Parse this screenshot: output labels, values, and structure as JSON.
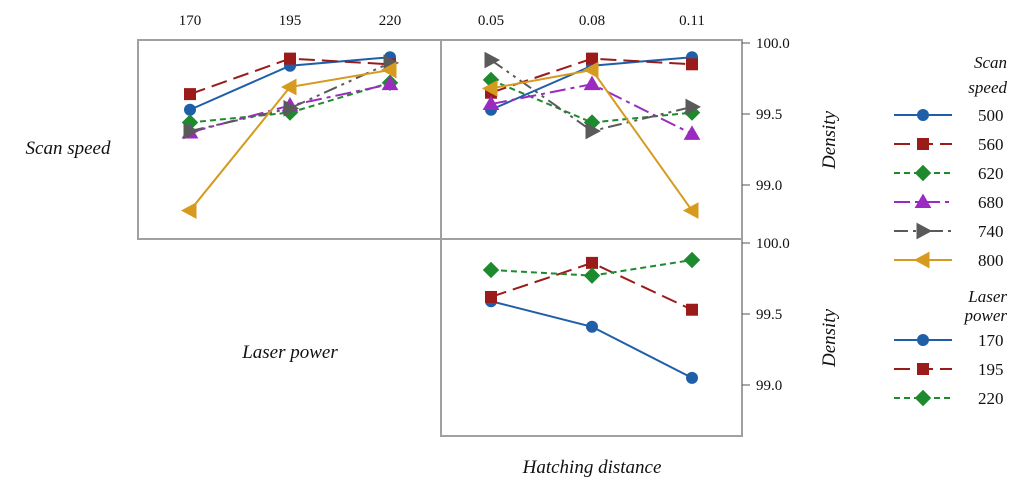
{
  "chart_data": {
    "type": "line",
    "title": "",
    "row_labels": [
      "Scan speed",
      "Laser power"
    ],
    "xlabel": "Hatching distance",
    "ylabel": "Density",
    "ylim": [
      98.7,
      100.05
    ],
    "y_ticks": [
      "100.0",
      "99.5",
      "99.0"
    ],
    "y_tick_values": [
      100.0,
      99.5,
      99.0
    ],
    "legends": [
      {
        "title_lines": [
          "Scan",
          "speed"
        ],
        "entries": [
          "500",
          "560",
          "620",
          "680",
          "740",
          "800"
        ]
      },
      {
        "title_lines": [
          "Laser",
          "power"
        ],
        "entries": [
          "170",
          "195",
          "220"
        ]
      }
    ],
    "panels": [
      {
        "name": "scan-speed-vs-laser-power",
        "categories": [
          "170",
          "195",
          "220"
        ],
        "series": [
          {
            "name": "500",
            "values": [
              99.53,
              99.84,
              99.9
            ]
          },
          {
            "name": "560",
            "values": [
              99.64,
              99.89,
              99.85
            ]
          },
          {
            "name": "620",
            "values": [
              99.44,
              99.51,
              99.72
            ]
          },
          {
            "name": "680",
            "values": [
              99.37,
              99.56,
              99.71
            ]
          },
          {
            "name": "740",
            "values": [
              99.38,
              99.54,
              99.86
            ]
          },
          {
            "name": "800",
            "values": [
              98.82,
              99.69,
              99.81
            ]
          }
        ]
      },
      {
        "name": "scan-speed-vs-hatching-distance",
        "categories": [
          "0.05",
          "0.08",
          "0.11"
        ],
        "series": [
          {
            "name": "500",
            "values": [
              99.53,
              99.84,
              99.9
            ]
          },
          {
            "name": "560",
            "values": [
              99.65,
              99.89,
              99.85
            ]
          },
          {
            "name": "620",
            "values": [
              99.74,
              99.44,
              99.51
            ]
          },
          {
            "name": "680",
            "values": [
              99.57,
              99.71,
              99.36
            ]
          },
          {
            "name": "740",
            "values": [
              99.88,
              99.38,
              99.55
            ]
          },
          {
            "name": "800",
            "values": [
              99.68,
              99.81,
              98.82
            ]
          }
        ]
      },
      {
        "name": "laser-power-vs-hatching-distance",
        "categories": [
          "0.05",
          "0.08",
          "0.11"
        ],
        "series": [
          {
            "name": "170",
            "values": [
              99.59,
              99.41,
              99.05
            ]
          },
          {
            "name": "195",
            "values": [
              99.62,
              99.86,
              99.53
            ]
          },
          {
            "name": "220",
            "values": [
              99.81,
              99.77,
              99.88
            ]
          }
        ]
      }
    ]
  },
  "colors": {
    "blue": "#1f5fa8",
    "darkred": "#9b1b1b",
    "green": "#1e8a2e",
    "purple": "#9b2bc0",
    "gray": "#5a5a5a",
    "gold": "#d69a1e",
    "frame": "#a0a0a0"
  }
}
